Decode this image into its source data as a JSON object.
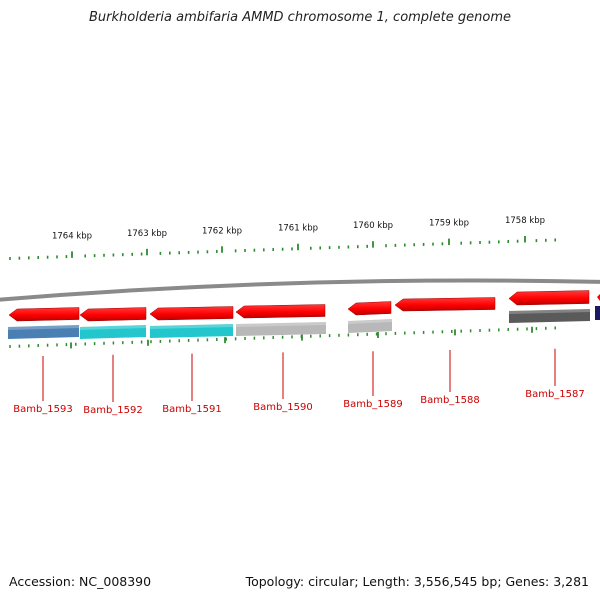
{
  "title": "Burkholderia ambifaria AMMD chromosome 1, complete genome",
  "footer": {
    "accession_label": "Accession:",
    "accession": "NC_008390",
    "topology_label": "Topology:",
    "topology": "circular",
    "length_label": "Length:",
    "length": "3,556,545 bp",
    "genes_label": "Genes:",
    "genes": "3,281"
  },
  "colors": {
    "ruler_tick": "#2e8b2e",
    "backbone": "#8a8a8a",
    "gene_arrow": "#ff0000",
    "gene_label": "#cc0000",
    "connector": "#cc0000"
  },
  "ruler": {
    "unit": "kbp",
    "ticks": [
      "1764 kbp",
      "1763 kbp",
      "1762 kbp",
      "1761 kbp",
      "1760 kbp",
      "1759 kbp",
      "1758 kbp"
    ]
  },
  "genes": [
    {
      "locus": "Bamb_1593",
      "strand": "-",
      "feature_color": "#4a7fb3"
    },
    {
      "locus": "Bamb_1592",
      "strand": "-",
      "feature_color": "#22c6cc"
    },
    {
      "locus": "Bamb_1591",
      "strand": "-",
      "feature_color": "#22c6cc"
    },
    {
      "locus": "Bamb_1590",
      "strand": "-",
      "feature_color": "#b8b8b8"
    },
    {
      "locus": "Bamb_1589",
      "strand": "-",
      "feature_color": "#b8b8b8"
    },
    {
      "locus": "Bamb_1588",
      "strand": "-",
      "feature_color": null
    },
    {
      "locus": "Bamb_1587",
      "strand": "-",
      "feature_color": "#5a5a5a"
    }
  ]
}
